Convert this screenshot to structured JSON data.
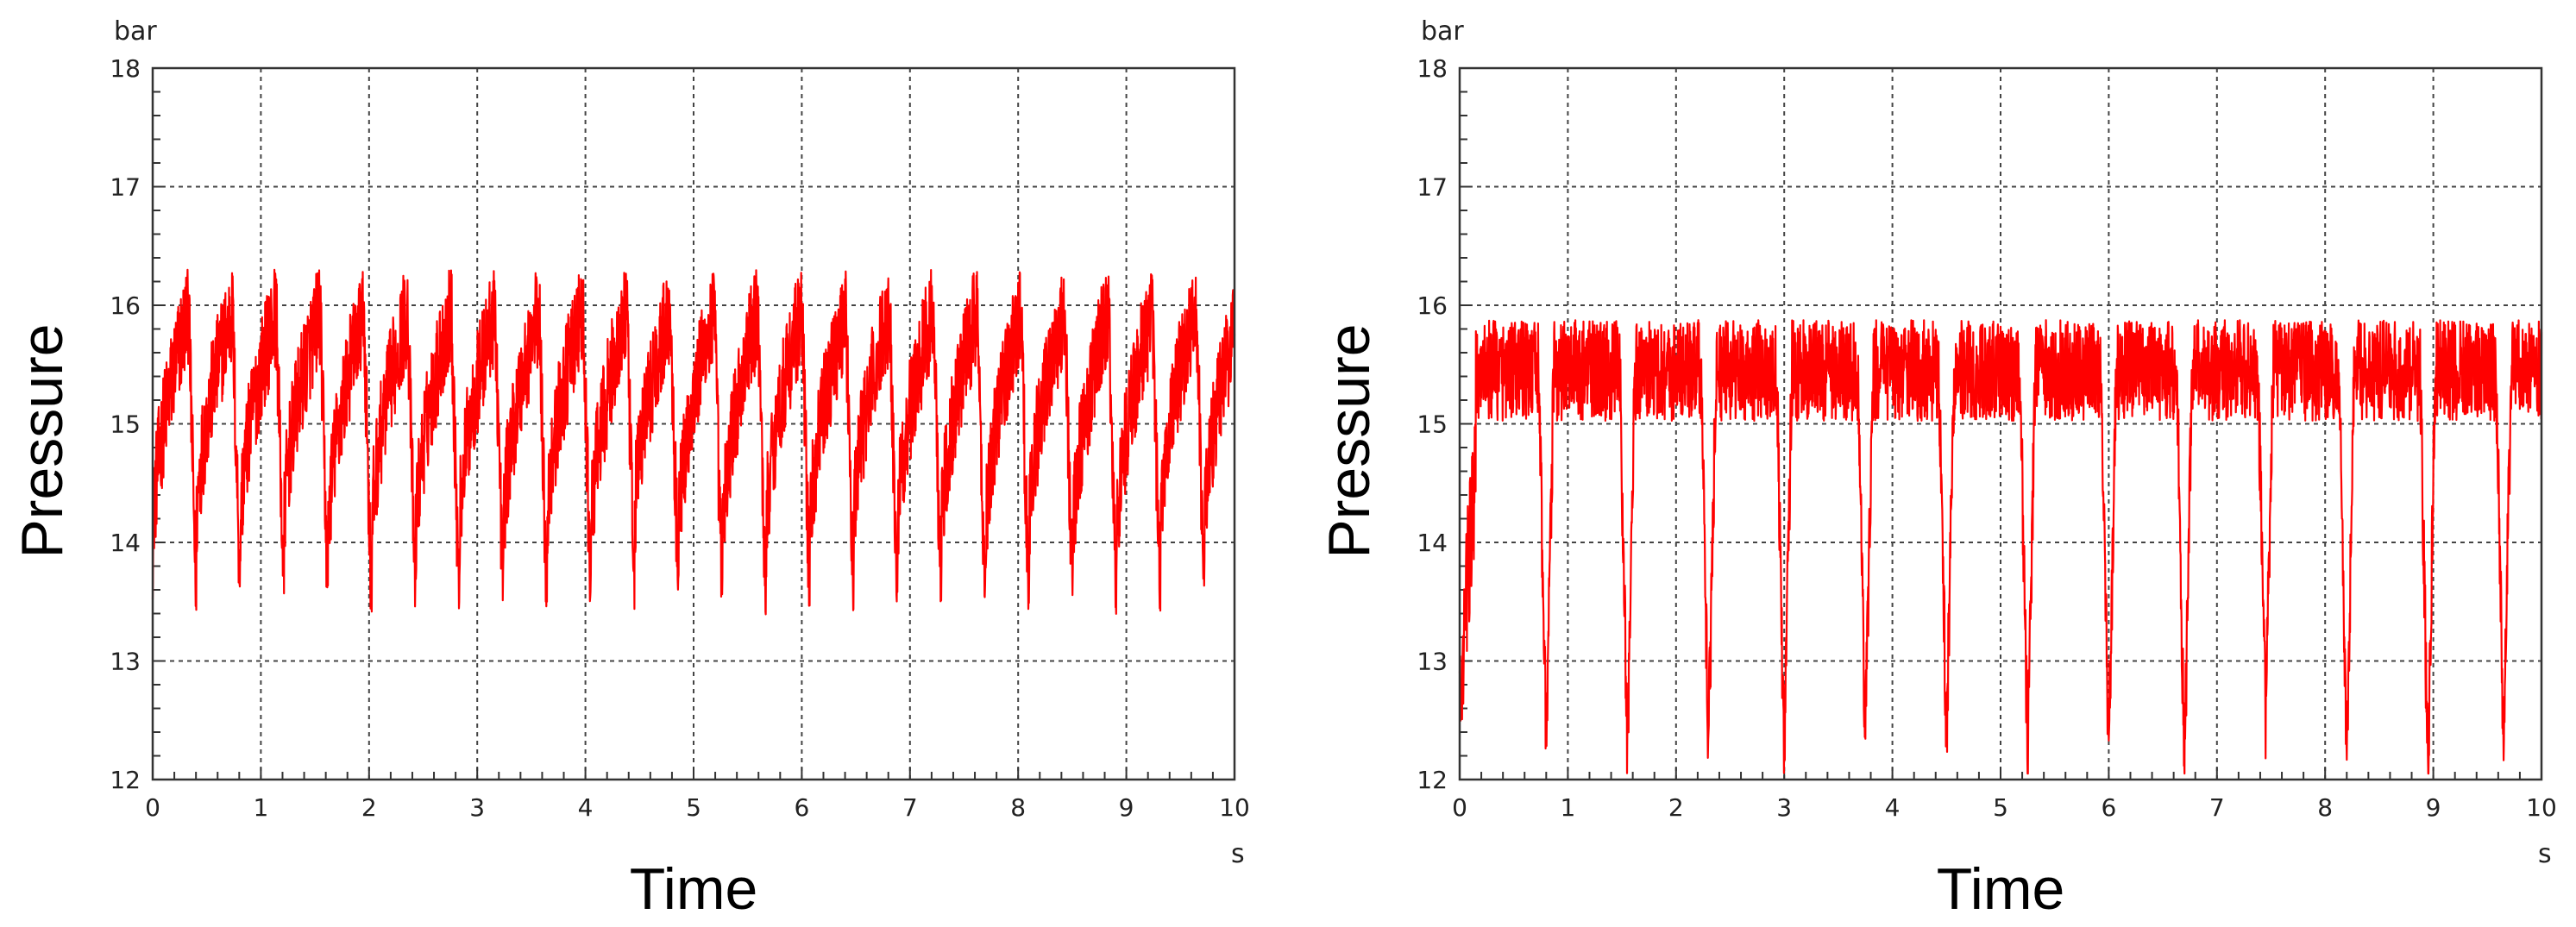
{
  "chart_data": [
    {
      "type": "line",
      "title": "",
      "xlabel": "Time",
      "ylabel": "Pressure",
      "x_unit": "s",
      "y_unit": "bar",
      "xlim": [
        0,
        10
      ],
      "ylim": [
        12,
        18
      ],
      "xticks": [
        "0",
        "1",
        "2",
        "3",
        "4",
        "5",
        "6",
        "7",
        "8",
        "9",
        "10"
      ],
      "yticks": [
        "12",
        "13",
        "14",
        "15",
        "16",
        "17",
        "18"
      ],
      "grid": true,
      "series": [
        {
          "color": "#ff0000",
          "cycle_start_s": 0.0,
          "cycle_period_s": 0.405,
          "dip_min_bar": [
            13.4,
            13.55,
            13.5,
            13.55,
            13.4,
            13.45,
            13.4,
            13.5,
            13.45,
            13.5,
            13.4,
            13.6,
            13.45,
            13.35,
            13.45,
            13.4,
            13.5,
            13.5,
            13.45,
            13.4,
            13.5,
            13.35,
            13.4,
            13.6,
            13.5
          ],
          "baseline_bar": 15.5,
          "peak_max_bar": 16.3
        }
      ]
    },
    {
      "type": "line",
      "title": "",
      "xlabel": "Time",
      "ylabel": "Pressure",
      "x_unit": "s",
      "y_unit": "bar",
      "xlim": [
        0,
        10
      ],
      "ylim": [
        12,
        18
      ],
      "xticks": [
        "0",
        "1",
        "2",
        "3",
        "4",
        "5",
        "6",
        "7",
        "8",
        "9",
        "10"
      ],
      "yticks": [
        "12",
        "13",
        "14",
        "15",
        "16",
        "17",
        "18"
      ],
      "grid": true,
      "series": [
        {
          "color": "#ff0000",
          "dip_times_s": [
            0.02,
            0.8,
            1.55,
            2.3,
            3.0,
            3.75,
            4.5,
            5.25,
            6.0,
            6.7,
            7.45,
            8.2,
            8.95,
            9.65
          ],
          "dip_min_bar": [
            12.4,
            12.3,
            12.25,
            12.3,
            12.1,
            12.35,
            12.3,
            12.15,
            12.25,
            12.1,
            12.45,
            12.2,
            12.05,
            12.25
          ],
          "baseline_bar": 15.45,
          "peak_max_bar": 16.05
        }
      ]
    }
  ]
}
